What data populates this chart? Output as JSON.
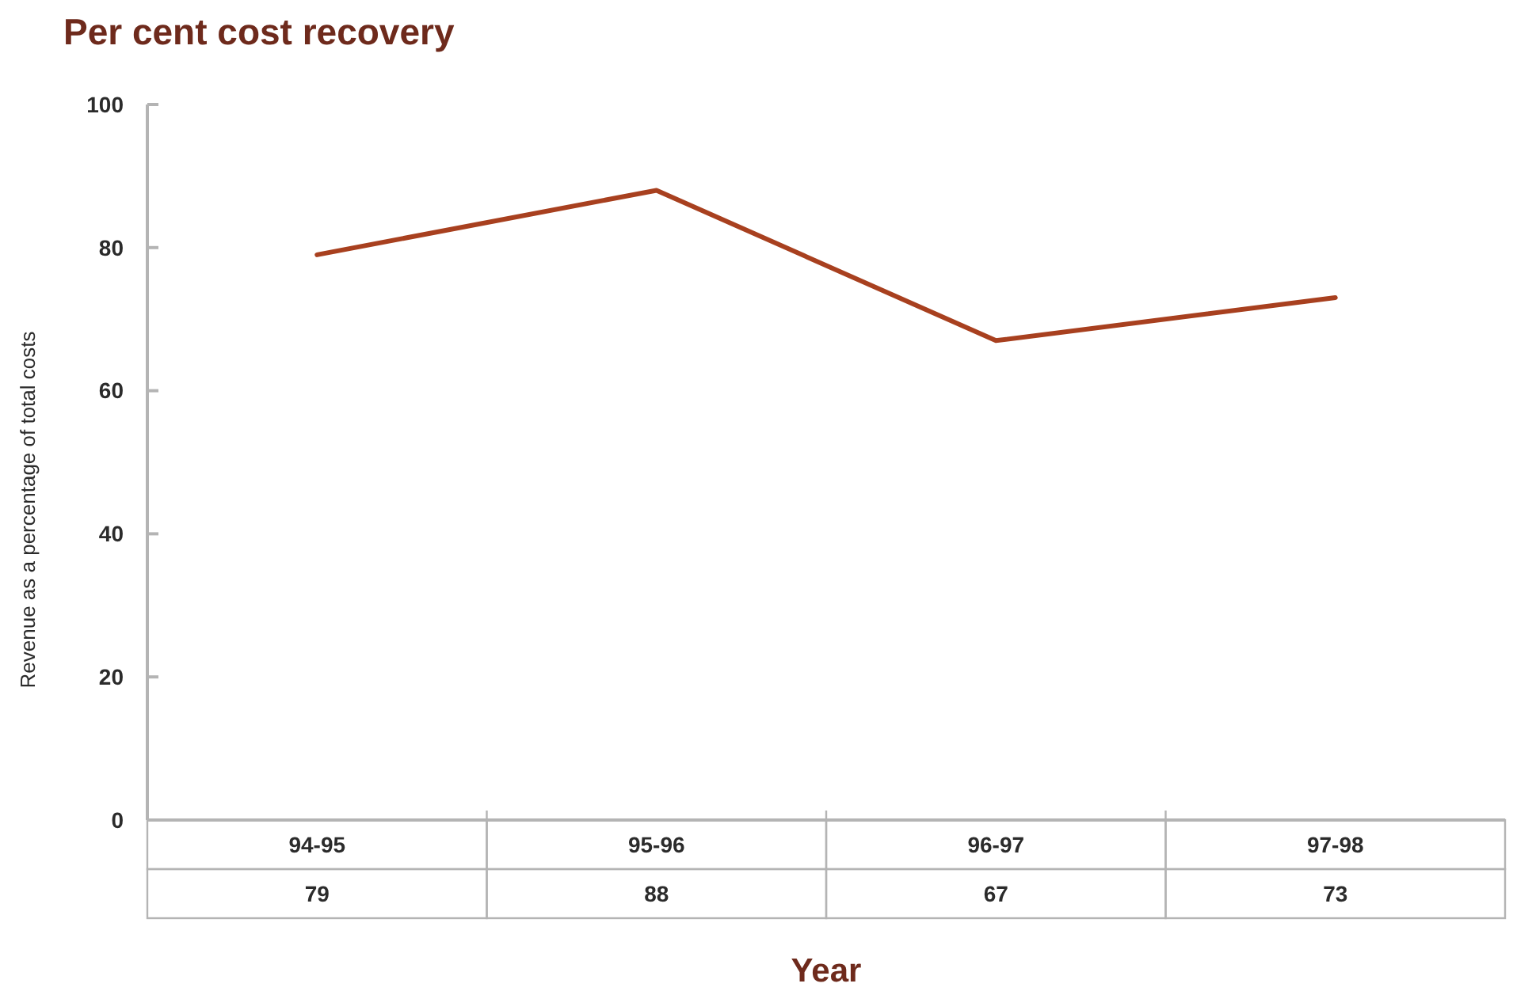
{
  "chart_data": {
    "type": "line",
    "title": "Per cent cost recovery",
    "xlabel": "Year",
    "ylabel": "Revenue as a percentage of total costs",
    "categories": [
      "94-95",
      "95-96",
      "96-97",
      "97-98"
    ],
    "values": [
      79,
      88,
      67,
      73
    ],
    "color": "#a8401f",
    "line_style": "solid",
    "ylim": [
      0,
      100
    ],
    "yticks": [
      0,
      20,
      40,
      60,
      80,
      100
    ],
    "data_labels": true
  }
}
